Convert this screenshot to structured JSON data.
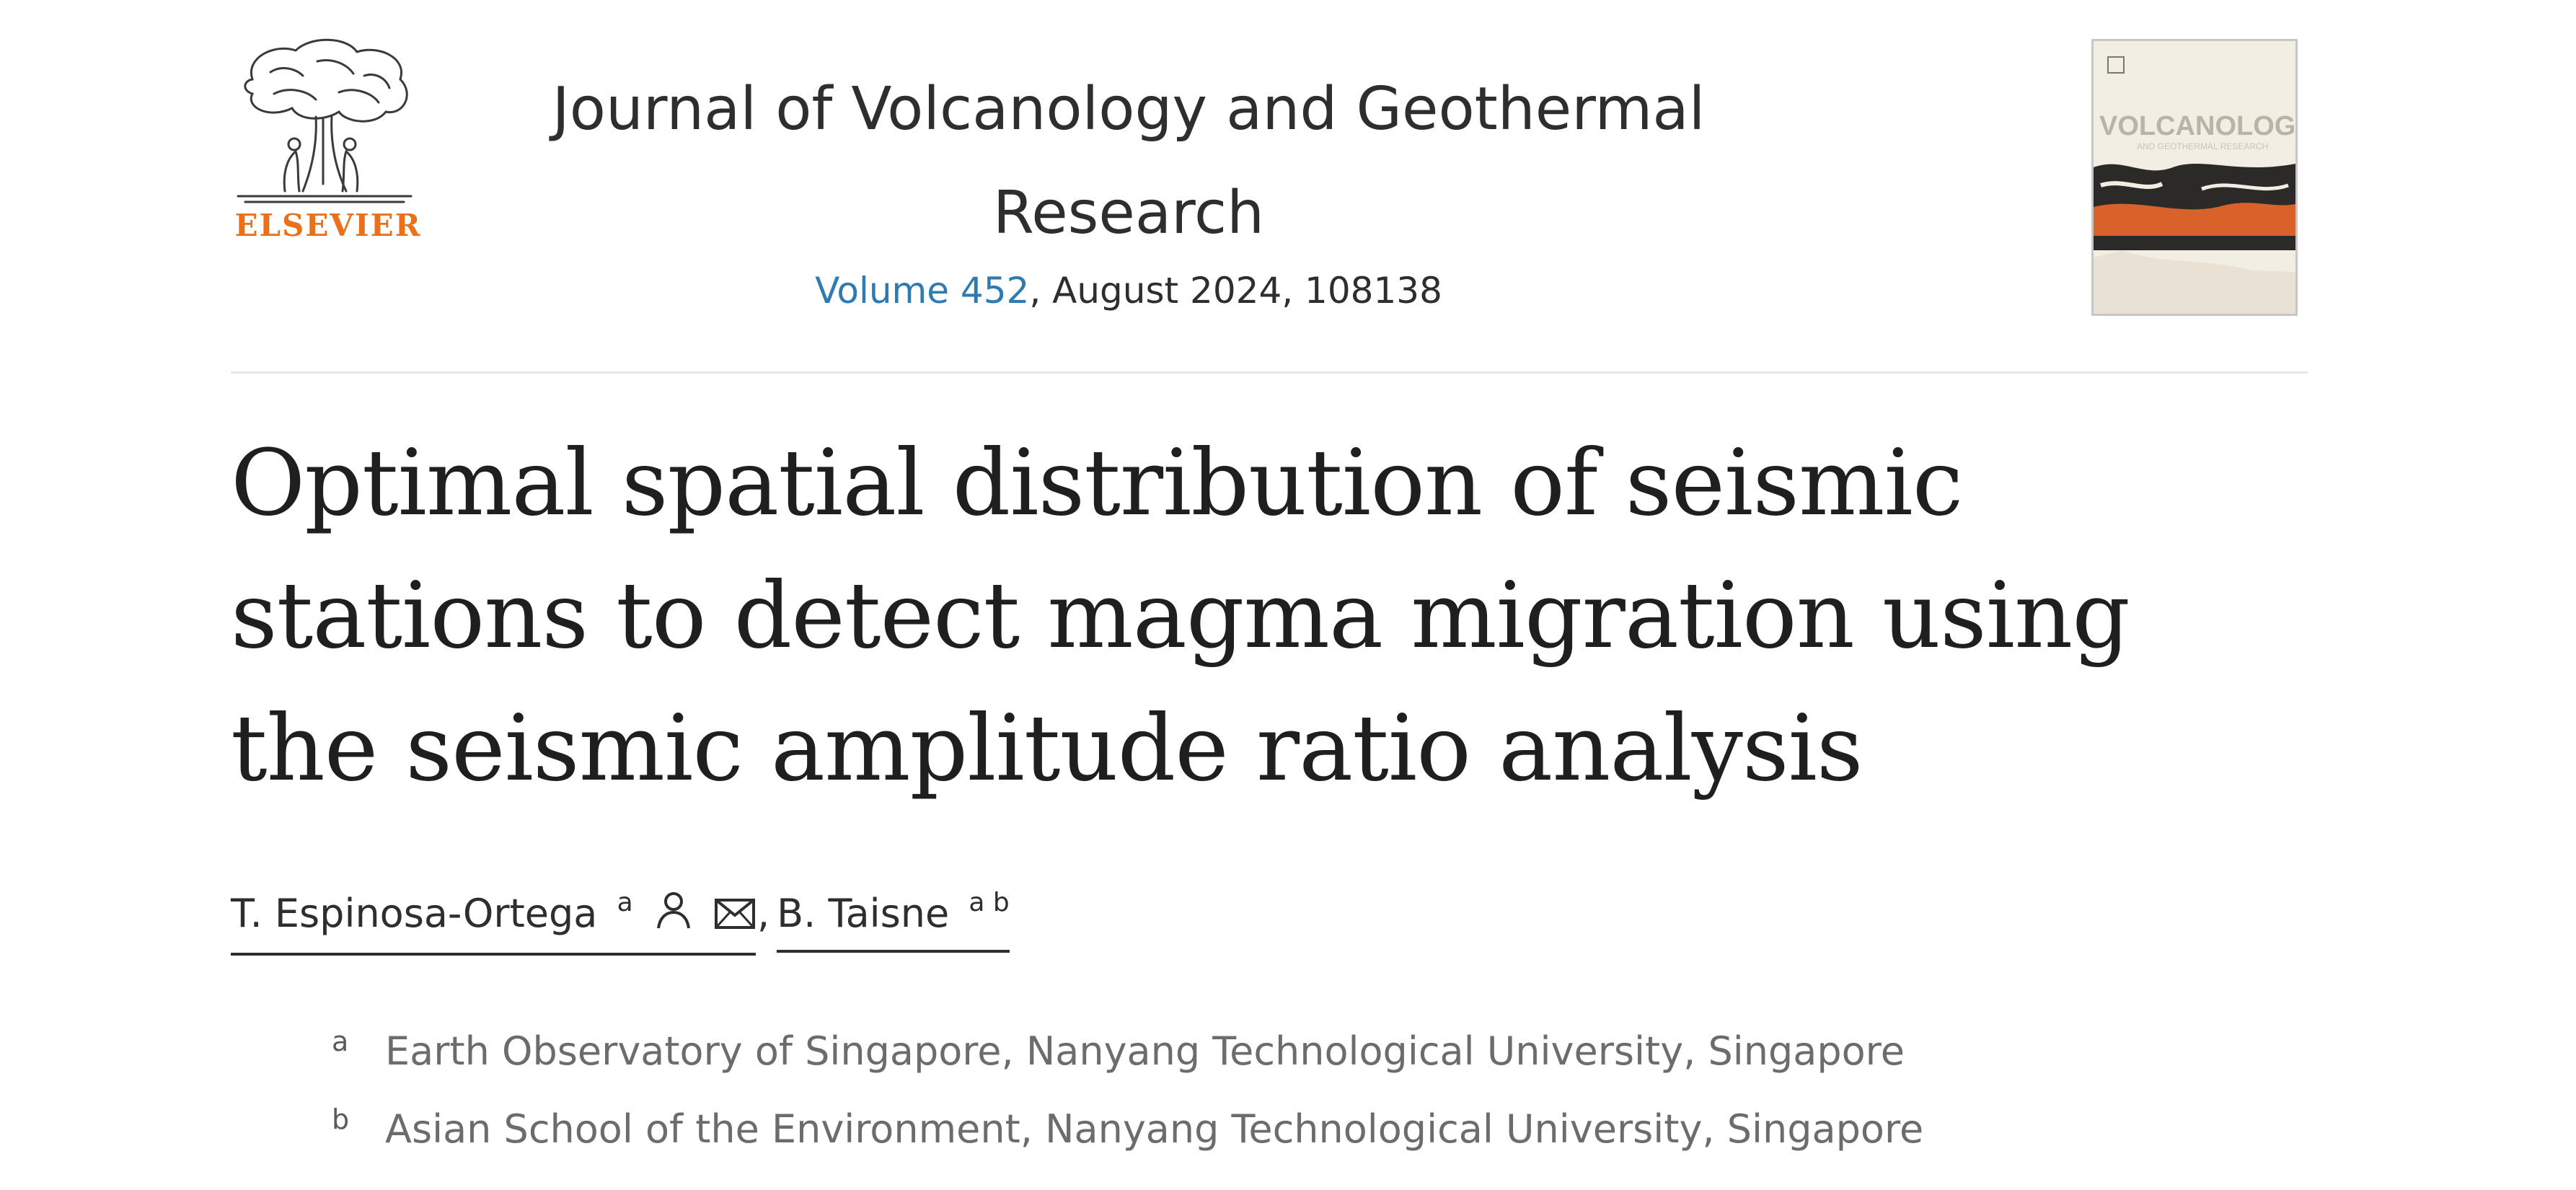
{
  "publisher": {
    "name": "ELSEVIER",
    "logo_icon": "elsevier-tree-logo",
    "brand_color": "#e9711c"
  },
  "journal": {
    "title": "Journal of Volcanology and Geothermal Research",
    "volume_label": "Volume 452",
    "issue_details": ", August 2024, 108138",
    "link_color": "#2e7ab2",
    "cover_icon": "journal-cover-thumbnail"
  },
  "article": {
    "title": "Optimal spatial distribution of seismic stations to detect magma migration using the seismic amplitude ratio analysis"
  },
  "authors": [
    {
      "name": "T. Espinosa-Ortega",
      "affiliation_marks": "a",
      "icons": [
        "person-icon",
        "envelope-icon"
      ]
    },
    {
      "name": "B. Taisne",
      "affiliation_marks": "a b",
      "icons": []
    }
  ],
  "author_separator": ",",
  "affiliations": [
    {
      "label": "a",
      "text": "Earth Observatory of Singapore, Nanyang Technological University, Singapore"
    },
    {
      "label": "b",
      "text": "Asian School of the Environment, Nanyang Technological University, Singapore"
    }
  ]
}
